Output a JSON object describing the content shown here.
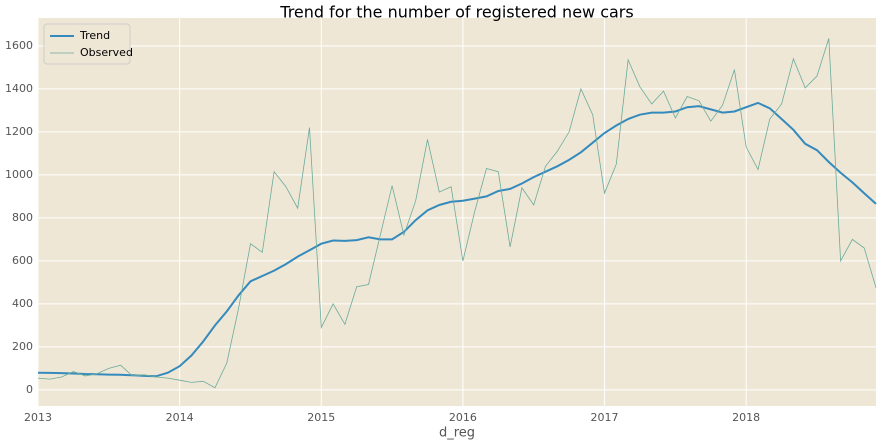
{
  "chart_data": {
    "type": "line",
    "title": "Trend for the number of registered new cars",
    "x_label": "d_reg",
    "x": [
      "2013-01",
      "2013-02",
      "2013-03",
      "2013-04",
      "2013-05",
      "2013-06",
      "2013-07",
      "2013-08",
      "2013-09",
      "2013-10",
      "2013-11",
      "2013-12",
      "2014-01",
      "2014-02",
      "2014-03",
      "2014-04",
      "2014-05",
      "2014-06",
      "2014-07",
      "2014-08",
      "2014-09",
      "2014-10",
      "2014-11",
      "2014-12",
      "2015-01",
      "2015-02",
      "2015-03",
      "2015-04",
      "2015-05",
      "2015-06",
      "2015-07",
      "2015-08",
      "2015-09",
      "2015-10",
      "2015-11",
      "2015-12",
      "2016-01",
      "2016-02",
      "2016-03",
      "2016-04",
      "2016-05",
      "2016-06",
      "2016-07",
      "2016-08",
      "2016-09",
      "2016-10",
      "2016-11",
      "2016-12",
      "2017-01",
      "2017-02",
      "2017-03",
      "2017-04",
      "2017-05",
      "2017-06",
      "2017-07",
      "2017-08",
      "2017-09",
      "2017-10",
      "2017-11",
      "2017-12",
      "2018-01",
      "2018-02",
      "2018-03",
      "2018-04",
      "2018-05",
      "2018-06",
      "2018-07",
      "2018-08",
      "2018-09",
      "2018-10",
      "2018-11",
      "2018-12"
    ],
    "series": [
      {
        "name": "Trend",
        "color": "#348abd",
        "width": 2,
        "values": [
          80,
          79,
          78,
          76,
          74,
          73,
          71,
          70,
          68,
          65,
          63,
          80,
          110,
          160,
          225,
          300,
          365,
          440,
          505,
          530,
          555,
          585,
          620,
          650,
          680,
          695,
          693,
          697,
          710,
          700,
          700,
          735,
          790,
          835,
          860,
          875,
          880,
          890,
          900,
          925,
          935,
          960,
          990,
          1015,
          1040,
          1070,
          1105,
          1150,
          1195,
          1230,
          1260,
          1280,
          1290,
          1290,
          1295,
          1315,
          1320,
          1305,
          1290,
          1295,
          1315,
          1335,
          1310,
          1260,
          1210,
          1145,
          1115,
          1060,
          1010,
          965,
          915,
          865
        ]
      },
      {
        "name": "Observed",
        "color": "#6aab9c",
        "width": 0.8,
        "values": [
          55,
          50,
          60,
          85,
          65,
          75,
          100,
          115,
          65,
          70,
          60,
          55,
          45,
          35,
          40,
          10,
          125,
          380,
          680,
          640,
          1015,
          945,
          845,
          1220,
          290,
          400,
          305,
          480,
          490,
          720,
          950,
          720,
          880,
          1165,
          920,
          945,
          600,
          830,
          1030,
          1015,
          665,
          940,
          860,
          1040,
          1110,
          1200,
          1400,
          1280,
          915,
          1050,
          1535,
          1410,
          1330,
          1390,
          1265,
          1365,
          1345,
          1250,
          1325,
          1490,
          1130,
          1025,
          1260,
          1330,
          1540,
          1405,
          1460,
          1635,
          600,
          700,
          660,
          475
        ]
      }
    ],
    "xlim": [
      "2013-01",
      "2018-12"
    ],
    "xticks": [
      {
        "value": "2013-01",
        "label": "2013"
      },
      {
        "value": "2014-01",
        "label": "2014"
      },
      {
        "value": "2015-01",
        "label": "2015"
      },
      {
        "value": "2016-01",
        "label": "2016"
      },
      {
        "value": "2017-01",
        "label": "2017"
      },
      {
        "value": "2018-01",
        "label": "2018"
      }
    ],
    "ylim": [
      -75,
      1730
    ],
    "yticks": [
      0,
      200,
      400,
      600,
      800,
      1000,
      1200,
      1400,
      1600
    ],
    "grid": true,
    "background": "#efe7d5",
    "legend": "upper-left"
  }
}
